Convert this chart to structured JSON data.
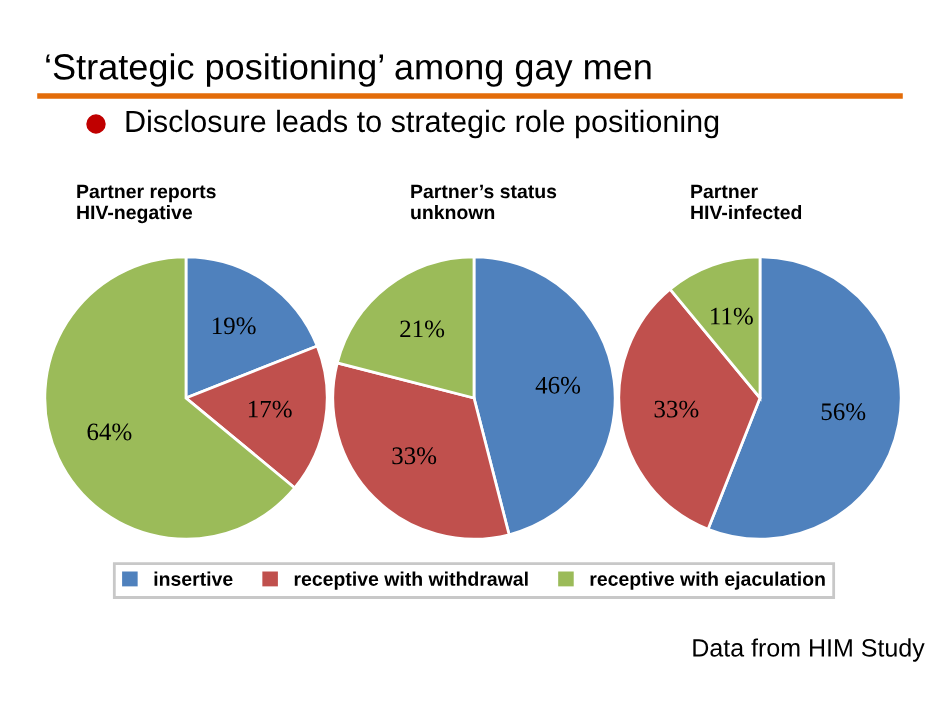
{
  "chart_data": [
    {
      "type": "pie",
      "title": "Partner reports\nHIV-negative",
      "categories": [
        "insertive",
        "receptive with withdrawal",
        "receptive with ejaculation"
      ],
      "values": [
        19,
        17,
        64
      ],
      "value_labels": [
        "19%",
        "17%",
        "64%"
      ],
      "colors": [
        "#4f81bd",
        "#c0504d",
        "#9bbb59"
      ],
      "legend": "bottom",
      "annotations": [
        "‘Strategic positioning’ among gay men",
        "Disclosure leads to strategic role positioning",
        "Data from HIM Study"
      ]
    },
    {
      "type": "pie",
      "title": "Partner’s status\nunknown",
      "categories": [
        null,
        null,
        null
      ],
      "values": [
        46,
        33,
        21
      ],
      "value_labels": [
        "46%",
        "33%",
        "21%"
      ],
      "colors": [
        "#4f81bd",
        "#c0504d",
        "#9bbb59"
      ]
    },
    {
      "type": "pie",
      "title": "Partner\nHIV-infected",
      "categories": [
        null,
        null,
        null
      ],
      "values": [
        56,
        33,
        11
      ],
      "value_labels": [
        "56%",
        "33%",
        "11%"
      ],
      "colors": [
        "#4f81bd",
        "#c0504d",
        "#9bbb59"
      ]
    }
  ]
}
